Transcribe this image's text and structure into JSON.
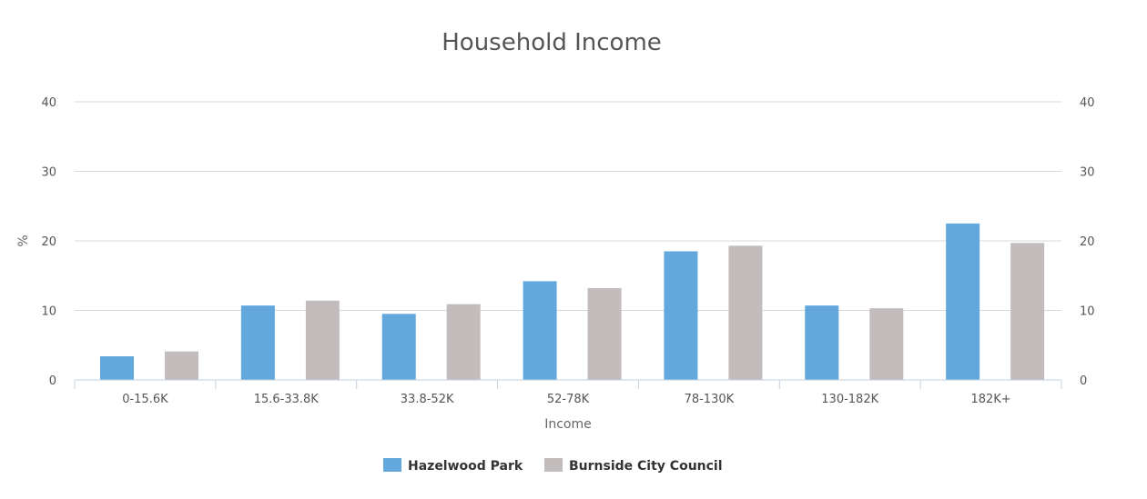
{
  "chart_data": {
    "type": "bar",
    "title": "Household Income",
    "xlabel": "Income",
    "ylabel": "%",
    "categories": [
      "0-15.6K",
      "15.6-33.8K",
      "33.8-52K",
      "52-78K",
      "78-130K",
      "130-182K",
      "182K+"
    ],
    "series": [
      {
        "name": "Hazelwood Park",
        "color": "#62a8dd",
        "values": [
          3.4,
          10.7,
          9.5,
          14.2,
          18.5,
          10.7,
          22.5
        ]
      },
      {
        "name": "Burnside City Council",
        "color": "#c3bcbc",
        "values": [
          4.1,
          11.4,
          10.9,
          13.2,
          19.3,
          10.3,
          19.7
        ]
      }
    ],
    "ylim": [
      0,
      40
    ],
    "yticks": [
      0,
      10,
      20,
      30,
      40
    ],
    "grid": true,
    "legend": "bottom-center",
    "secondary_y_axis": true
  }
}
